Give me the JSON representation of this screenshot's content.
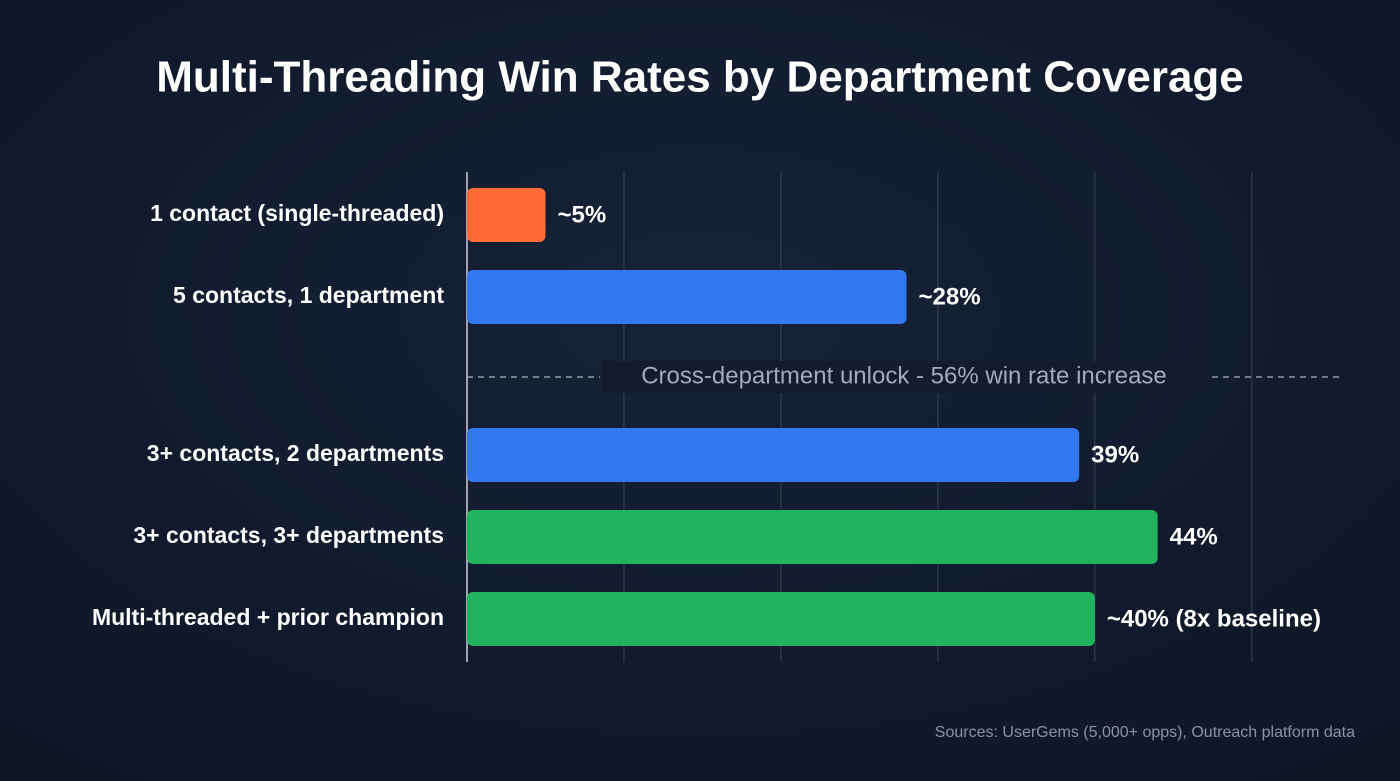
{
  "chart_data": {
    "type": "hbar",
    "title": "Multi-Threading Win Rates by Department Coverage",
    "categories": [
      "1 contact (single-threaded)",
      "5 contacts, 1 department",
      "3+ contacts, 2 departments",
      "3+ contacts, 3+ departments",
      "Multi-threaded + prior champion"
    ],
    "values": [
      5,
      28,
      39,
      44,
      40
    ],
    "value_labels": [
      "~5%",
      "~28%",
      "39%",
      "44%",
      "~40% (8x baseline)"
    ],
    "colors": [
      "#ff6b35",
      "#3478f0",
      "#3478f0",
      "#22b35e",
      "#22b35e"
    ],
    "xlim": [
      0,
      56
    ],
    "xticks": [
      0,
      10,
      20,
      30,
      40,
      50
    ],
    "grid": true,
    "annotation": "Cross-department unlock - 56% win rate increase",
    "source": "Sources: UserGems (5,000+ opps), Outreach platform data"
  }
}
